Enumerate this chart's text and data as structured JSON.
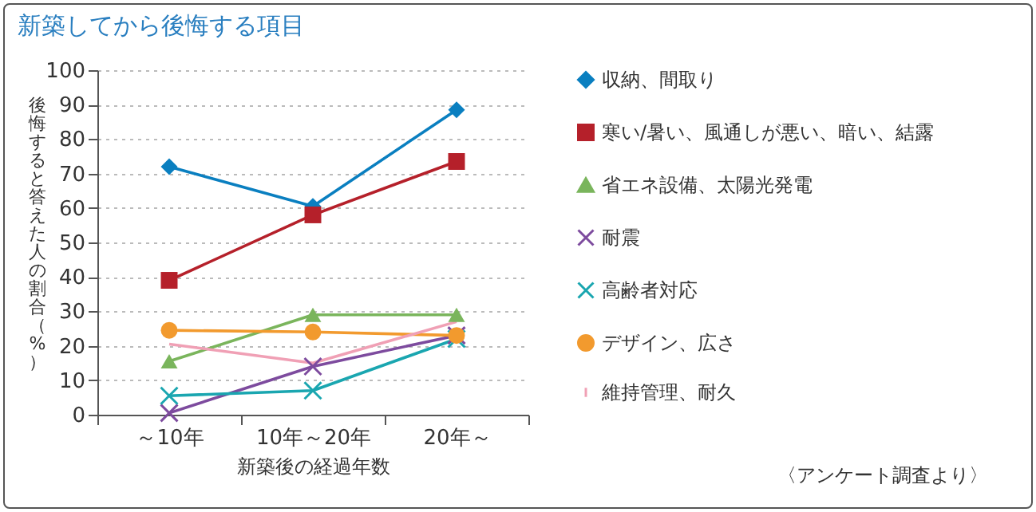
{
  "chart_data": {
    "type": "line",
    "title": "新築してから後悔する項目",
    "xlabel": "新築後の経過年数",
    "ylabel": "後悔すると答えた人の割合（%）",
    "categories": [
      "～10年",
      "10年～20年",
      "20年～"
    ],
    "ylim": [
      0,
      100
    ],
    "yticks": [
      0,
      10,
      20,
      30,
      40,
      50,
      60,
      70,
      80,
      90,
      100
    ],
    "grid": "y",
    "legend": "right",
    "annotations": [
      "〈アンケート調査より〉"
    ],
    "series": [
      {
        "name": "収納、間取り",
        "color": "#0a7fc0",
        "marker": "diamond",
        "values": [
          72,
          60.5,
          88.5
        ]
      },
      {
        "name": "寒い/暑い、風通しが悪い、暗い、結露",
        "color": "#b5202a",
        "marker": "square",
        "values": [
          39,
          58,
          73.5
        ]
      },
      {
        "name": "省エネ設備、太陽光発電",
        "color": "#7ab55c",
        "marker": "triangle",
        "values": [
          15.5,
          29,
          29
        ]
      },
      {
        "name": "耐震",
        "color": "#7d4b9e",
        "marker": "cross",
        "values": [
          0.5,
          14,
          23
        ]
      },
      {
        "name": "高齢者対応",
        "color": "#1aa6b0",
        "marker": "cross",
        "values": [
          5.5,
          7,
          22
        ]
      },
      {
        "name": "デザイン、広さ",
        "color": "#f29a2e",
        "marker": "circle",
        "values": [
          24.5,
          24,
          23
        ]
      },
      {
        "name": "維持管理、耐久",
        "color": "#f0a0b5",
        "marker": "none",
        "values": [
          20.5,
          15,
          27
        ]
      }
    ]
  }
}
